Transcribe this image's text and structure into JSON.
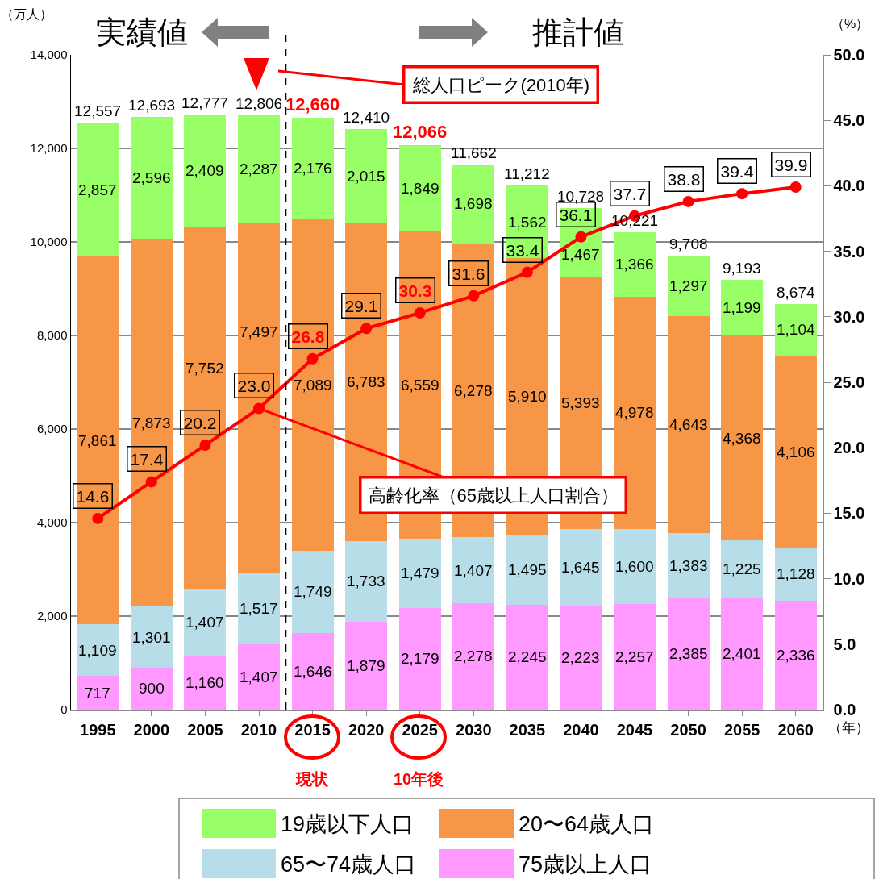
{
  "chart_data": {
    "type": "bar",
    "stacked": true,
    "x": [
      1995,
      2000,
      2005,
      2010,
      2015,
      2020,
      2025,
      2030,
      2035,
      2040,
      2045,
      2050,
      2055,
      2060
    ],
    "xlim": [
      1992.5,
      2062.5
    ],
    "xticks": [
      1995,
      2000,
      2005,
      2010,
      2015,
      2020,
      2025,
      2030,
      2035,
      2040,
      2045,
      2050,
      2055,
      2060
    ],
    "ylim": [
      0,
      14000
    ],
    "yticks": [
      0,
      {
        "value": 2000,
        "label": "2,000"
      },
      {
        "value": 4000,
        "label": "4,000"
      },
      {
        "value": 6000,
        "label": "6,000"
      },
      {
        "value": 8000,
        "label": "8,000"
      },
      {
        "value": 10000,
        "label": "10,000"
      },
      {
        "value": 12000,
        "label": "12,000"
      },
      {
        "value": 14000,
        "label": "14,000"
      }
    ],
    "y2lim": [
      0,
      50
    ],
    "y2ticks": [
      {
        "value": 0,
        "label": "0.0"
      },
      {
        "value": 5,
        "label": "5.0"
      },
      {
        "value": 10,
        "label": "10.0"
      },
      {
        "value": 15,
        "label": "15.0"
      },
      {
        "value": 20,
        "label": "20.0"
      },
      {
        "value": 25,
        "label": "25.0"
      },
      {
        "value": 30,
        "label": "30.0"
      },
      {
        "value": 35,
        "label": "35.0"
      },
      {
        "value": 40,
        "label": "40.0"
      },
      {
        "value": 45,
        "label": "45.0"
      },
      {
        "value": 50,
        "label": "50.0"
      }
    ],
    "xlabel": "（年）",
    "ylabel": "（万人）",
    "y2label": "（%）",
    "series": [
      {
        "name": "75歳以上人口",
        "color": "#ff99ff",
        "values": [
          717,
          900,
          1160,
          1407,
          1646,
          1879,
          2179,
          2278,
          2245,
          2223,
          2257,
          2385,
          2401,
          2336
        ],
        "value_labels": [
          "717",
          "900",
          "1,160",
          "1,407",
          "1,646",
          "1,879",
          "2,179",
          "2,278",
          "2,245",
          "2,223",
          "2,257",
          "2,385",
          "2,401",
          "2,336"
        ]
      },
      {
        "name": "65〜74歳人口",
        "color": "#b7dee8",
        "values": [
          1109,
          1301,
          1407,
          1517,
          1749,
          1733,
          1479,
          1407,
          1495,
          1645,
          1600,
          1383,
          1225,
          1128
        ],
        "value_labels": [
          "1,109",
          "1,301",
          "1,407",
          "1,517",
          "1,749",
          "1,733",
          "1,479",
          "1,407",
          "1,495",
          "1,645",
          "1,600",
          "1,383",
          "1,225",
          "1,128"
        ]
      },
      {
        "name": "20〜64歳人口",
        "color": "#f79646",
        "values": [
          7861,
          7873,
          7752,
          7497,
          7089,
          6783,
          6559,
          6278,
          5910,
          5393,
          4978,
          4643,
          4368,
          4106
        ],
        "value_labels": [
          "7,861",
          "7,873",
          "7,752",
          "7,497",
          "7,089",
          "6,783",
          "6,559",
          "6,278",
          "5,910",
          "5,393",
          "4,978",
          "4,643",
          "4,368",
          "4,106"
        ]
      },
      {
        "name": "19歳以下人口",
        "color": "#99ff66",
        "values": [
          2857,
          2596,
          2409,
          2287,
          2176,
          2015,
          1849,
          1698,
          1562,
          1467,
          1366,
          1297,
          1199,
          1104
        ],
        "value_labels": [
          "2,857",
          "2,596",
          "2,409",
          "2,287",
          "2,176",
          "2,015",
          "1,849",
          "1,698",
          "1,562",
          "1,467",
          "1,366",
          "1,297",
          "1,199",
          "1,104"
        ]
      },
      {
        "type": "line",
        "axis": "y2",
        "color": "#ff0000",
        "marker": "circle",
        "values": [
          14.6,
          17.4,
          20.2,
          23.0,
          26.8,
          29.1,
          30.3,
          31.6,
          33.4,
          36.1,
          37.7,
          38.8,
          39.4,
          39.9
        ],
        "value_labels": [
          "14.6",
          "17.4",
          "20.2",
          "23.0",
          "26.8",
          "29.1",
          "30.3",
          "31.6",
          "33.4",
          "36.1",
          "37.7",
          "38.8",
          "39.4",
          "39.9"
        ]
      }
    ],
    "grid": "y",
    "legend": "bottom",
    "ref_lines": [
      {
        "axis": "x",
        "value": 2012.5,
        "color": "#000000",
        "line_style": "dashed"
      }
    ],
    "annotations": [
      "実績値",
      "推計値",
      "総人口ピーク(2010年)",
      {
        "text": "高齢化率（65歳以上人口割合）",
        "x": 2010,
        "y": 6440
      },
      "現状",
      "10年後",
      {
        "text": "12,557",
        "x": 1995,
        "y": 12544
      },
      {
        "text": "12,693",
        "x": 2000,
        "y": 12670
      },
      {
        "text": "12,777",
        "x": 2005,
        "y": 12728
      },
      {
        "text": "12,806",
        "x": 2010,
        "y": 12708
      },
      {
        "text": "12,660",
        "x": 2015,
        "y": 12660
      },
      {
        "text": "12,410",
        "x": 2020,
        "y": 12410
      },
      {
        "text": "12,066",
        "x": 2025,
        "y": 12066
      },
      {
        "text": "11,662",
        "x": 2030,
        "y": 11661
      },
      {
        "text": "11,212",
        "x": 2035,
        "y": 11212
      },
      {
        "text": "10,728",
        "x": 2040,
        "y": 10728
      },
      {
        "text": "10,221",
        "x": 2045,
        "y": 10201
      },
      {
        "text": "9,708",
        "x": 2050,
        "y": 9708
      },
      {
        "text": "9,193",
        "x": 2055,
        "y": 9193
      },
      {
        "text": "8,674",
        "x": 2060,
        "y": 8674
      }
    ]
  }
}
